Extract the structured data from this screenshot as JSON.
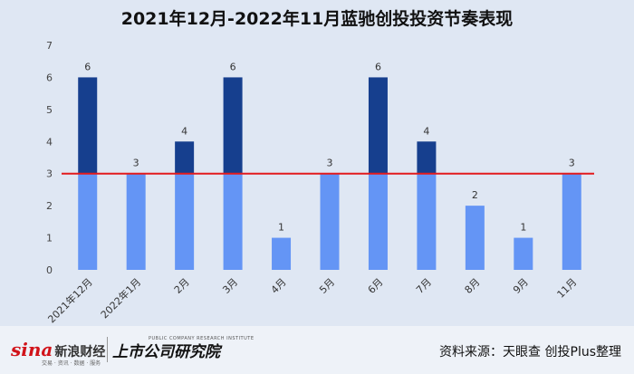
{
  "chart_data": {
    "type": "bar",
    "title": "2021年12月-2022年11月蓝驰创投投资节奏表现",
    "categories": [
      "2021年12月",
      "2022年1月",
      "2月",
      "3月",
      "4月",
      "5月",
      "6月",
      "7月",
      "8月",
      "9月",
      "11月"
    ],
    "values": [
      6,
      3,
      4,
      6,
      1,
      3,
      6,
      4,
      2,
      1,
      3
    ],
    "data_labels": [
      "6",
      "3",
      "4",
      "6",
      "1",
      "3",
      "6",
      "4",
      "2",
      "1",
      "3"
    ],
    "yticks": [
      "0",
      "1",
      "2",
      "3",
      "4",
      "5",
      "6",
      "7"
    ],
    "ylim": [
      0,
      7
    ],
    "reference_line": 3,
    "grid": false,
    "colors": {
      "below_reference": "#6495f5",
      "above_reference": "#163f8e",
      "reference_line": "#e31a1c",
      "background": "#dfe7f3"
    }
  },
  "footer": {
    "sina_logo": "sina",
    "sina_cn": "新浪财经",
    "sina_sub": "交易 · 资讯 · 数据 · 服务",
    "ssgs_logo": "上市公司研究院",
    "ssgs_tiny": "PUBLIC COMPANY RESEARCH INSTITUTE",
    "source": "资料来源：天眼查 创投Plus整理"
  }
}
